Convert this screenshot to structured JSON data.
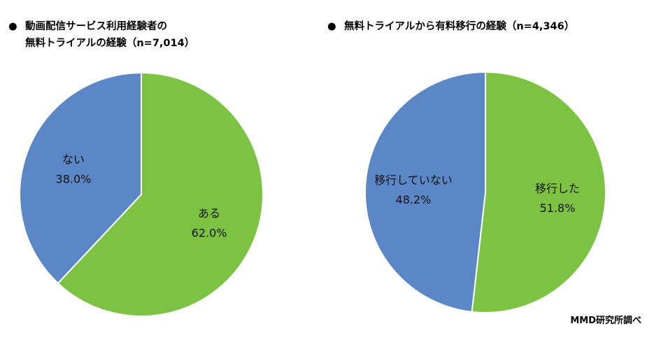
{
  "chart_data": [
    {
      "type": "pie",
      "title_lines": [
        "動画配信サービス利用経験者の",
        "無料トライアルの経験（n=7,014）"
      ],
      "slices": [
        {
          "label": "ある",
          "value": 62.0,
          "value_label": "62.0%",
          "color": "#7cc243"
        },
        {
          "label": "ない",
          "value": 38.0,
          "value_label": "38.0%",
          "color": "#5b87c7"
        }
      ],
      "start": "12 o'clock",
      "direction": "clockwise"
    },
    {
      "type": "pie",
      "title_lines": [
        "無料トライアルから有料移行の経験（n=4,346）"
      ],
      "slices": [
        {
          "label": "移行した",
          "value": 51.8,
          "value_label": "51.8%",
          "color": "#7cc243"
        },
        {
          "label": "移行していない",
          "value": 48.2,
          "value_label": "48.2%",
          "color": "#5b87c7"
        }
      ],
      "start": "12 o'clock",
      "direction": "clockwise"
    }
  ],
  "bullet": "●",
  "source": "MMD研究所調べ"
}
